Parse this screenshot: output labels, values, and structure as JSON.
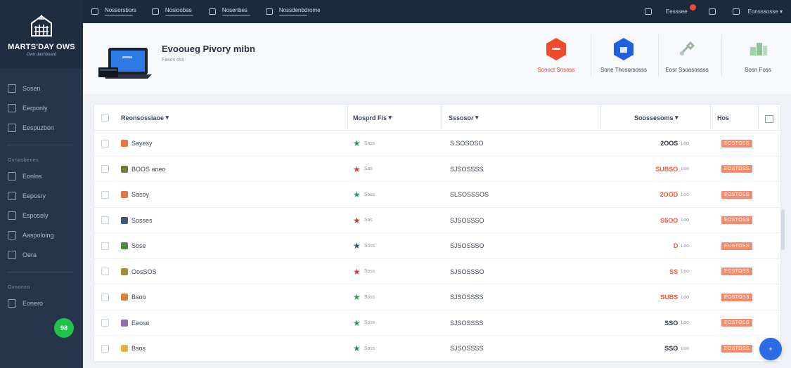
{
  "brand": {
    "name": "MARTS'DAY OWS",
    "subtitle": "Own dashboard"
  },
  "colors": {
    "accent": "#2b6be3",
    "danger": "#ee4a3a",
    "success": "#1fc24a",
    "badge": "#f68a6c",
    "sidebar": "#26354a"
  },
  "sidebar": {
    "group1": [
      {
        "label": "Sosen",
        "icon": "dashboard-icon"
      },
      {
        "label": "Eerponly",
        "icon": "box-icon"
      },
      {
        "label": "Eespuzbon",
        "icon": "grid-icon"
      }
    ],
    "section2": "Ovnasbenes",
    "group2": [
      {
        "label": "Eonlns",
        "icon": "cube-icon"
      },
      {
        "label": "Eeposry",
        "icon": "chart-icon"
      },
      {
        "label": "Esposely",
        "icon": "users-icon"
      },
      {
        "label": "Aaspoloing",
        "icon": "report-icon"
      },
      {
        "label": "Oera",
        "icon": "store-icon"
      }
    ],
    "section3": "Ovnoneo",
    "group3": [
      {
        "label": "Eonero",
        "icon": "settings-icon"
      }
    ],
    "fab": "98"
  },
  "topbar": {
    "nav": [
      {
        "label": "Nossorsbors",
        "icon": "monitor-icon"
      },
      {
        "label": "Nosioobas",
        "icon": "inbox-icon"
      },
      {
        "label": "Nosenbes",
        "icon": "folder-icon"
      },
      {
        "label": "Nossdenbdrome",
        "icon": "calendar-icon"
      }
    ],
    "notif_label": "Eesssee",
    "user_label": "Eonsssosse"
  },
  "header": {
    "title": "Evooueg Pivory mibn",
    "subtitle": "Fasos oss",
    "actions": [
      {
        "label": "Sonoct Sosnss",
        "color": "#ef4b2b",
        "hex_text": "",
        "red_label": true
      },
      {
        "label": "Sone Thosorsosss",
        "color": "#1f5fe0",
        "hex_text": ""
      },
      {
        "label": "Eosr Ssoasossss",
        "color": "#9fb4a4",
        "hex_text": ""
      },
      {
        "label": "Sosn Foss",
        "color": "#8fc49a",
        "hex_text": ""
      }
    ]
  },
  "table": {
    "headers": {
      "name": "Reonsossiaoe",
      "rating": "Mosprd Fis",
      "sku": "Sssosor",
      "price": "Soossesoms",
      "status": "Hos"
    },
    "rows": [
      {
        "name": "Sayesy",
        "rating": "Sass",
        "star": "#1ca64a",
        "sku": "S.SOSOSO",
        "price": "2OOS",
        "unit": "Loo",
        "red": false,
        "chip": "#e6763d",
        "status": "EOSTOSS"
      },
      {
        "name": "BOOS aneo",
        "rating": "Sas",
        "star": "#e83a35",
        "sku": "SJSOSSSS",
        "price": "SUBSO",
        "unit": "Loo",
        "red": true,
        "chip": "#6d7f3a",
        "status": "EOSTOSS"
      },
      {
        "name": "Sasoy",
        "rating": "Soss",
        "star": "#1c9b72",
        "sku": "SLSOSSSOS",
        "price": "2OOD",
        "unit": "Loo",
        "red": true,
        "chip": "#e0763d",
        "status": "EOSTOSS"
      },
      {
        "name": "Sosses",
        "rating": "Sas",
        "star": "#cc3b2c",
        "sku": "SJSOSSSO",
        "price": "S5OO",
        "unit": "Loo",
        "red": true,
        "chip": "#3e5a76",
        "status": "EOSTOSS"
      },
      {
        "name": "Sose",
        "rating": "Soss",
        "star": "#2d5a6a",
        "sku": "SJSOSSSO",
        "price": "D",
        "unit": "Loo",
        "red": true,
        "chip": "#4f8b3a",
        "status": "EOSTOSS"
      },
      {
        "name": "OosSOS",
        "rating": "Soss",
        "star": "#e23b3b",
        "sku": "SJSOSSSO",
        "price": "SS",
        "unit": "Loo",
        "red": true,
        "chip": "#a58a3a",
        "status": "EOSTOSS"
      },
      {
        "name": "Bsoo",
        "rating": "Soss",
        "star": "#1ca64a",
        "sku": "SJSOSSSS",
        "price": "SUBS",
        "unit": "Loo",
        "red": true,
        "chip": "#d9823a",
        "status": "EOSTOSS"
      },
      {
        "name": "Eeoso",
        "rating": "Soss",
        "star": "#1ca64a",
        "sku": "SJSOSSSS",
        "price": "SSO",
        "unit": "Loo",
        "red": false,
        "chip": "#8c6fb0",
        "status": "EOSTOSS"
      },
      {
        "name": "Bsos",
        "rating": "Soss",
        "star": "#1c8f7a",
        "sku": "SJSOSSSS",
        "price": "SSO",
        "unit": "Loo",
        "red": false,
        "chip": "#e6b13d",
        "status": "EOSTOSS"
      }
    ]
  },
  "fab_blue": "+"
}
